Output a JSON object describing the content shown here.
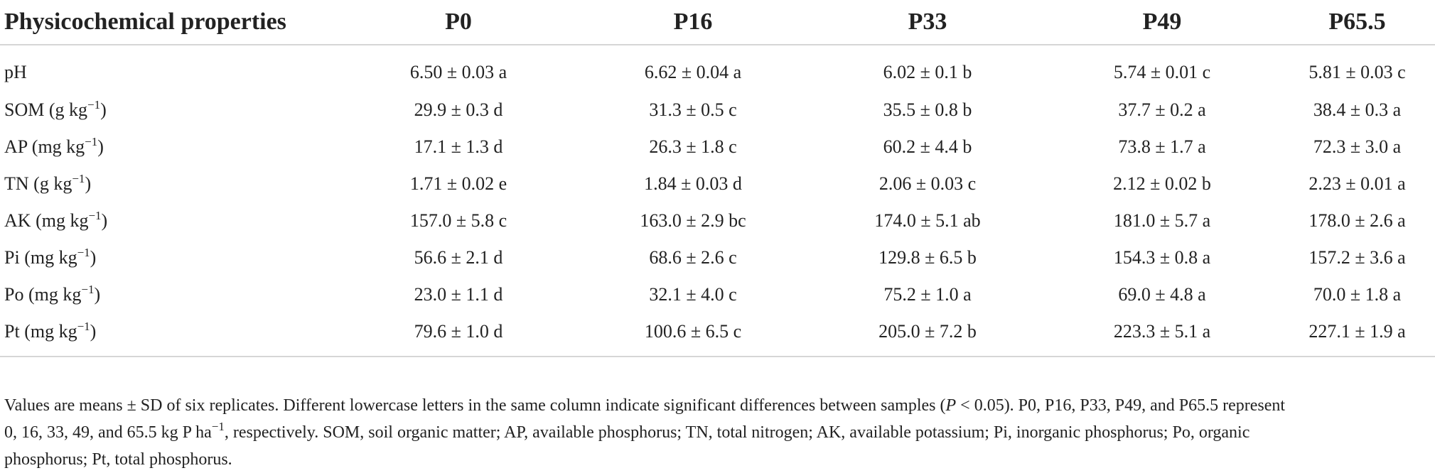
{
  "table": {
    "headers": [
      "Physicochemical properties",
      "P0",
      "P16",
      "P33",
      "P49",
      "P65.5"
    ],
    "rows": [
      {
        "label": "pH",
        "unit": "",
        "unit_exp": "",
        "unit_tail": "",
        "values": [
          "6.50 ± 0.03 a",
          "6.62 ± 0.04 a",
          "6.02 ± 0.1 b",
          "5.74 ± 0.01 c",
          "5.81 ± 0.03 c"
        ]
      },
      {
        "label": "SOM",
        "unit": " (g kg",
        "unit_exp": "−1",
        "unit_tail": ")",
        "values": [
          "29.9 ± 0.3 d",
          "31.3 ± 0.5 c",
          "35.5 ± 0.8 b",
          "37.7 ± 0.2 a",
          "38.4 ± 0.3 a"
        ]
      },
      {
        "label": "AP",
        "unit": " (mg kg",
        "unit_exp": "−1",
        "unit_tail": ")",
        "values": [
          "17.1 ± 1.3 d",
          "26.3 ± 1.8 c",
          "60.2 ± 4.4 b",
          "73.8 ± 1.7 a",
          "72.3 ± 3.0 a"
        ]
      },
      {
        "label": "TN",
        "unit": " (g kg",
        "unit_exp": "−1",
        "unit_tail": ")",
        "values": [
          "1.71 ± 0.02 e",
          "1.84 ± 0.03 d",
          "2.06 ± 0.03 c",
          "2.12 ± 0.02 b",
          "2.23 ± 0.01 a"
        ]
      },
      {
        "label": "AK",
        "unit": " (mg kg",
        "unit_exp": "−1",
        "unit_tail": ")",
        "values": [
          "157.0 ± 5.8 c",
          "163.0 ± 2.9 bc",
          "174.0 ± 5.1 ab",
          "181.0 ± 5.7 a",
          "178.0 ± 2.6 a"
        ]
      },
      {
        "label": "Pi",
        "unit": " (mg kg",
        "unit_exp": "−1",
        "unit_tail": ")",
        "values": [
          "56.6 ± 2.1 d",
          "68.6 ± 2.6 c",
          "129.8 ± 6.5 b",
          "154.3 ± 0.8 a",
          "157.2 ± 3.6 a"
        ]
      },
      {
        "label": "Po",
        "unit": " (mg kg",
        "unit_exp": "−1",
        "unit_tail": ")",
        "values": [
          "23.0 ± 1.1 d",
          "32.1 ± 4.0 c",
          "75.2 ± 1.0 a",
          "69.0 ± 4.8 a",
          "70.0 ± 1.8 a"
        ]
      },
      {
        "label": "Pt",
        "unit": " (mg kg",
        "unit_exp": "−1",
        "unit_tail": ")",
        "values": [
          "79.6 ± 1.0 d",
          "100.6 ± 6.5 c",
          "205.0 ± 7.2 b",
          "223.3 ± 5.1 a",
          "227.1 ± 1.9 a"
        ]
      }
    ]
  },
  "footnote": {
    "line1_a": "Values are means ± SD of six replicates. Different lowercase letters in the same column indicate significant differences between samples (",
    "line1_p": "P",
    "line1_b": " < 0.05). P0, P16, P33, P49, and P65.5 represent",
    "line2_a": "0, 16, 33, 49, and 65.5 kg P ha",
    "line2_exp": "−1",
    "line2_b": ", respectively. SOM, soil organic matter; AP, available phosphorus; TN, total nitrogen; AK, available potassium; Pi, inorganic phosphorus; Po, organic",
    "line3": "phosphorus; Pt, total phosphorus."
  }
}
